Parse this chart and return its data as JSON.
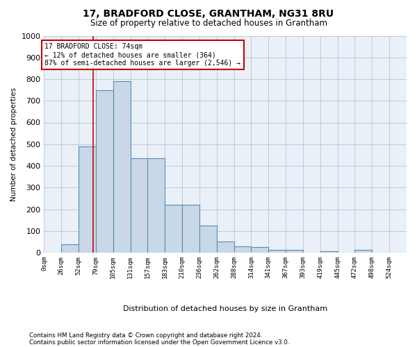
{
  "title": "17, BRADFORD CLOSE, GRANTHAM, NG31 8RU",
  "subtitle": "Size of property relative to detached houses in Grantham",
  "xlabel": "Distribution of detached houses by size in Grantham",
  "ylabel": "Number of detached properties",
  "bar_labels": [
    "0sqm",
    "26sqm",
    "52sqm",
    "79sqm",
    "105sqm",
    "131sqm",
    "157sqm",
    "183sqm",
    "210sqm",
    "236sqm",
    "262sqm",
    "288sqm",
    "314sqm",
    "341sqm",
    "367sqm",
    "393sqm",
    "419sqm",
    "445sqm",
    "472sqm",
    "498sqm",
    "524sqm"
  ],
  "bar_values": [
    0,
    40,
    490,
    750,
    790,
    435,
    435,
    220,
    220,
    125,
    50,
    28,
    25,
    12,
    12,
    0,
    8,
    0,
    12,
    0,
    0
  ],
  "bar_color": "#c8d8e8",
  "bar_edge_color": "#5a8ab0",
  "ylim": [
    0,
    1000
  ],
  "yticks": [
    0,
    100,
    200,
    300,
    400,
    500,
    600,
    700,
    800,
    900,
    1000
  ],
  "property_sqm": 74,
  "annotation_text": "17 BRADFORD CLOSE: 74sqm\n← 12% of detached houses are smaller (364)\n87% of semi-detached houses are larger (2,546) →",
  "annotation_box_color": "#ffffff",
  "annotation_box_edgecolor": "#cc0000",
  "vline_color": "#cc0000",
  "footer_line1": "Contains HM Land Registry data © Crown copyright and database right 2024.",
  "footer_line2": "Contains public sector information licensed under the Open Government Licence v3.0.",
  "background_color": "#eaf0f8",
  "bin_width": 26,
  "num_bins": 21
}
